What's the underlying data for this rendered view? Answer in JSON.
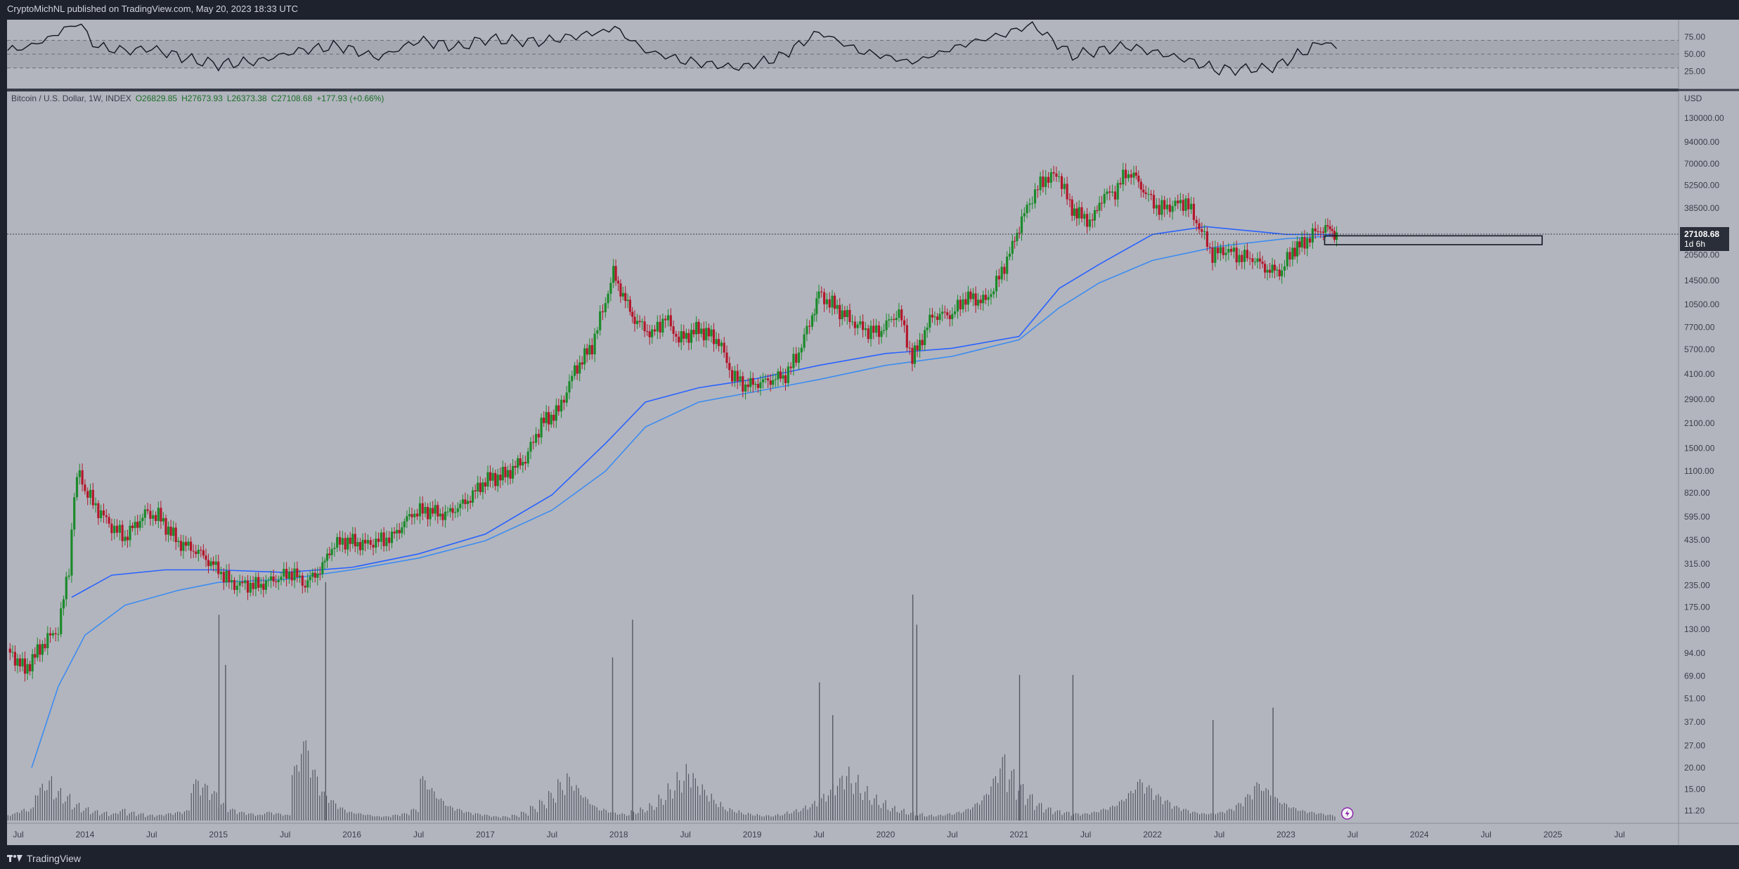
{
  "header": {
    "publish_note": "CryptoMichNL published on TradingView.com, May 20, 2023 18:33 UTC"
  },
  "footer": {
    "brand": "TradingView"
  },
  "legend": {
    "symbol": "Bitcoin / U.S. Dollar, 1W, INDEX",
    "open": "O26829.85",
    "high": "H27673.93",
    "low": "L26373.38",
    "close": "C27108.68",
    "change": "+177.93 (+0.66%)"
  },
  "price_label": {
    "price": "27108.68",
    "countdown": "1d 6h"
  },
  "colors": {
    "background": "#b2b5be",
    "up": "#1b8a2a",
    "down": "#b3172b",
    "ma1": "#2962ff",
    "ma2": "#3d8cf0",
    "rsi": "#131722"
  },
  "chart_data": {
    "type": "line",
    "scale": "log",
    "currency": "USD",
    "x_ticks": [
      "Jul",
      "2014",
      "Jul",
      "2015",
      "Jul",
      "2016",
      "Jul",
      "2017",
      "Jul",
      "2018",
      "Jul",
      "2019",
      "Jul",
      "2020",
      "Jul",
      "2021",
      "Jul",
      "2022",
      "Jul",
      "2023",
      "Jul",
      "2024",
      "Jul",
      "2025",
      "Jul"
    ],
    "x_tick_dates": [
      2013.5,
      2014,
      2014.5,
      2015,
      2015.5,
      2016,
      2016.5,
      2017,
      2017.5,
      2018,
      2018.5,
      2019,
      2019.5,
      2020,
      2020.5,
      2021,
      2021.5,
      2022,
      2022.5,
      2023,
      2023.5,
      2024,
      2024.5,
      2025,
      2025.5
    ],
    "y_ticks": [
      "130000.00",
      "94000.00",
      "70000.00",
      "52500.00",
      "38500.00",
      "20500.00",
      "14500.00",
      "10500.00",
      "7700.00",
      "5700.00",
      "4100.00",
      "2900.00",
      "2100.00",
      "1500.00",
      "1100.00",
      "820.00",
      "595.00",
      "435.00",
      "315.00",
      "235.00",
      "175.00",
      "130.00",
      "94.00",
      "69.00",
      "51.00",
      "37.00",
      "27.00",
      "20.00",
      "15.00",
      "11.20"
    ],
    "y_tick_values": [
      130000,
      94000,
      70000,
      52500,
      38500,
      20500,
      14500,
      10500,
      7700,
      5700,
      4100,
      2900,
      2100,
      1500,
      1100,
      820,
      595,
      435,
      315,
      235,
      175,
      130,
      94,
      69,
      51,
      37,
      27,
      20,
      15,
      11.2
    ],
    "price_path": [
      [
        2013.42,
        100
      ],
      [
        2013.55,
        75
      ],
      [
        2013.7,
        110
      ],
      [
        2013.8,
        130
      ],
      [
        2013.88,
        300
      ],
      [
        2013.92,
        800
      ],
      [
        2013.96,
        1100
      ],
      [
        2014.0,
        850
      ],
      [
        2014.1,
        650
      ],
      [
        2014.2,
        520
      ],
      [
        2014.3,
        450
      ],
      [
        2014.45,
        620
      ],
      [
        2014.55,
        600
      ],
      [
        2014.7,
        420
      ],
      [
        2014.85,
        370
      ],
      [
        2015.0,
        290
      ],
      [
        2015.1,
        240
      ],
      [
        2015.3,
        235
      ],
      [
        2015.45,
        260
      ],
      [
        2015.55,
        280
      ],
      [
        2015.65,
        240
      ],
      [
        2015.78,
        300
      ],
      [
        2015.85,
        400
      ],
      [
        2015.95,
        430
      ],
      [
        2016.1,
        410
      ],
      [
        2016.3,
        450
      ],
      [
        2016.45,
        620
      ],
      [
        2016.55,
        650
      ],
      [
        2016.7,
        610
      ],
      [
        2016.85,
        720
      ],
      [
        2017.0,
        970
      ],
      [
        2017.15,
        1050
      ],
      [
        2017.3,
        1300
      ],
      [
        2017.42,
        2100
      ],
      [
        2017.55,
        2500
      ],
      [
        2017.67,
        4300
      ],
      [
        2017.8,
        6000
      ],
      [
        2017.9,
        11000
      ],
      [
        2017.96,
        16000
      ],
      [
        2018.05,
        11000
      ],
      [
        2018.12,
        8500
      ],
      [
        2018.25,
        7000
      ],
      [
        2018.35,
        8800
      ],
      [
        2018.45,
        6500
      ],
      [
        2018.6,
        7500
      ],
      [
        2018.75,
        6400
      ],
      [
        2018.85,
        4000
      ],
      [
        2018.95,
        3500
      ],
      [
        2019.1,
        3700
      ],
      [
        2019.25,
        4000
      ],
      [
        2019.35,
        5500
      ],
      [
        2019.45,
        9000
      ],
      [
        2019.5,
        12000
      ],
      [
        2019.6,
        10500
      ],
      [
        2019.75,
        8300
      ],
      [
        2019.85,
        7400
      ],
      [
        2019.95,
        7200
      ],
      [
        2020.1,
        9500
      ],
      [
        2020.2,
        5000
      ],
      [
        2020.35,
        9000
      ],
      [
        2020.5,
        9200
      ],
      [
        2020.6,
        11500
      ],
      [
        2020.75,
        11000
      ],
      [
        2020.85,
        15000
      ],
      [
        2020.95,
        23000
      ],
      [
        2021.02,
        33000
      ],
      [
        2021.12,
        48000
      ],
      [
        2021.2,
        58000
      ],
      [
        2021.3,
        60000
      ],
      [
        2021.38,
        40000
      ],
      [
        2021.45,
        35000
      ],
      [
        2021.55,
        32000
      ],
      [
        2021.62,
        45000
      ],
      [
        2021.72,
        48000
      ],
      [
        2021.8,
        62000
      ],
      [
        2021.86,
        60000
      ],
      [
        2021.95,
        47000
      ],
      [
        2022.05,
        38000
      ],
      [
        2022.15,
        40000
      ],
      [
        2022.25,
        42000
      ],
      [
        2022.35,
        30000
      ],
      [
        2022.45,
        20500
      ],
      [
        2022.55,
        22000
      ],
      [
        2022.65,
        20000
      ],
      [
        2022.75,
        19500
      ],
      [
        2022.88,
        16500
      ],
      [
        2022.97,
        16600
      ],
      [
        2023.05,
        22000
      ],
      [
        2023.12,
        23500
      ],
      [
        2023.2,
        27000
      ],
      [
        2023.28,
        29500
      ],
      [
        2023.33,
        28500
      ],
      [
        2023.38,
        27100
      ]
    ],
    "ma_slow": [
      [
        2013.6,
        20
      ],
      [
        2013.8,
        60
      ],
      [
        2014.0,
        120
      ],
      [
        2014.3,
        180
      ],
      [
        2014.7,
        220
      ],
      [
        2015.0,
        245
      ],
      [
        2015.5,
        255
      ],
      [
        2016.0,
        290
      ],
      [
        2016.5,
        340
      ],
      [
        2017.0,
        430
      ],
      [
        2017.5,
        650
      ],
      [
        2017.9,
        1100
      ],
      [
        2018.2,
        2000
      ],
      [
        2018.6,
        2800
      ],
      [
        2019.0,
        3200
      ],
      [
        2019.5,
        3800
      ],
      [
        2020.0,
        4600
      ],
      [
        2020.5,
        5200
      ],
      [
        2021.0,
        6500
      ],
      [
        2021.3,
        10000
      ],
      [
        2021.6,
        14000
      ],
      [
        2022.0,
        19000
      ],
      [
        2022.5,
        23000
      ],
      [
        2023.0,
        25500
      ],
      [
        2023.38,
        26500
      ]
    ],
    "ma_fast": [
      [
        2013.9,
        200
      ],
      [
        2014.2,
        270
      ],
      [
        2014.6,
        290
      ],
      [
        2015.0,
        290
      ],
      [
        2015.5,
        280
      ],
      [
        2016.0,
        300
      ],
      [
        2016.5,
        360
      ],
      [
        2017.0,
        470
      ],
      [
        2017.5,
        800
      ],
      [
        2017.9,
        1600
      ],
      [
        2018.2,
        2800
      ],
      [
        2018.6,
        3400
      ],
      [
        2019.0,
        3800
      ],
      [
        2019.5,
        4600
      ],
      [
        2020.0,
        5400
      ],
      [
        2020.5,
        5800
      ],
      [
        2021.0,
        6800
      ],
      [
        2021.3,
        13000
      ],
      [
        2021.6,
        18000
      ],
      [
        2022.0,
        27000
      ],
      [
        2022.4,
        30000
      ],
      [
        2022.8,
        28000
      ],
      [
        2023.0,
        27000
      ],
      [
        2023.38,
        27000
      ]
    ],
    "zone": {
      "x0": 2023.29,
      "x1": 2024.92,
      "y_high": 26500,
      "y_low": 23500
    },
    "rsi": {
      "ylim": [
        0,
        100
      ],
      "y_ticks": [
        75,
        50,
        25
      ],
      "upper": 70,
      "lower": 30,
      "values": [
        [
          2013.42,
          55
        ],
        [
          2013.6,
          62
        ],
        [
          2013.8,
          80
        ],
        [
          2013.93,
          97
        ],
        [
          2014.1,
          60
        ],
        [
          2014.3,
          55
        ],
        [
          2014.5,
          58
        ],
        [
          2014.8,
          42
        ],
        [
          2015.0,
          35
        ],
        [
          2015.3,
          40
        ],
        [
          2015.6,
          55
        ],
        [
          2015.9,
          62
        ],
        [
          2016.2,
          45
        ],
        [
          2016.5,
          70
        ],
        [
          2016.8,
          60
        ],
        [
          2017.0,
          72
        ],
        [
          2017.4,
          68
        ],
        [
          2017.8,
          80
        ],
        [
          2017.97,
          88
        ],
        [
          2018.2,
          55
        ],
        [
          2018.5,
          40
        ],
        [
          2018.9,
          30
        ],
        [
          2019.2,
          45
        ],
        [
          2019.5,
          82
        ],
        [
          2019.8,
          55
        ],
        [
          2020.2,
          38
        ],
        [
          2020.6,
          65
        ],
        [
          2020.9,
          80
        ],
        [
          2021.1,
          93
        ],
        [
          2021.4,
          48
        ],
        [
          2021.8,
          62
        ],
        [
          2022.2,
          45
        ],
        [
          2022.5,
          27
        ],
        [
          2022.9,
          30
        ],
        [
          2023.2,
          60
        ],
        [
          2023.3,
          70
        ],
        [
          2023.38,
          58
        ]
      ]
    },
    "volume": {
      "values": [
        5,
        8,
        9,
        25,
        30,
        22,
        18,
        12,
        9,
        7,
        6,
        5,
        8,
        6,
        5,
        4,
        4,
        5,
        6,
        7,
        28,
        25,
        20,
        12,
        8,
        6,
        5,
        4,
        6,
        5,
        4,
        38,
        55,
        35,
        20,
        14,
        9,
        6,
        5,
        4,
        3,
        3,
        4,
        5,
        8,
        30,
        22,
        15,
        10,
        8,
        6,
        5,
        4,
        3,
        3,
        4,
        6,
        10,
        14,
        20,
        28,
        32,
        24,
        16,
        10,
        8,
        6,
        5,
        7,
        9,
        12,
        18,
        26,
        34,
        40,
        30,
        22,
        15,
        10,
        8,
        6,
        5,
        4,
        4,
        5,
        7,
        9,
        12,
        16,
        22,
        30,
        38,
        32,
        24,
        18,
        14,
        10,
        8,
        6,
        5,
        4,
        4,
        5,
        6,
        8,
        12,
        18,
        30,
        45,
        35,
        25,
        18,
        12,
        9,
        7,
        6,
        5,
        5,
        6,
        8,
        10,
        14,
        20,
        28,
        24,
        18,
        14,
        10,
        8,
        6,
        5,
        5,
        6,
        8,
        12,
        18,
        26,
        22,
        16,
        12,
        9,
        7,
        6,
        5,
        4
      ],
      "spikes": [
        [
          2015.0,
          82
        ],
        [
          2015.05,
          62
        ],
        [
          2015.8,
          95
        ],
        [
          2017.95,
          65
        ],
        [
          2018.1,
          80
        ],
        [
          2019.5,
          55
        ],
        [
          2019.6,
          42
        ],
        [
          2020.2,
          90
        ],
        [
          2020.23,
          78
        ],
        [
          2021.0,
          58
        ],
        [
          2021.4,
          58
        ],
        [
          2022.45,
          40
        ],
        [
          2022.9,
          45
        ]
      ]
    }
  }
}
